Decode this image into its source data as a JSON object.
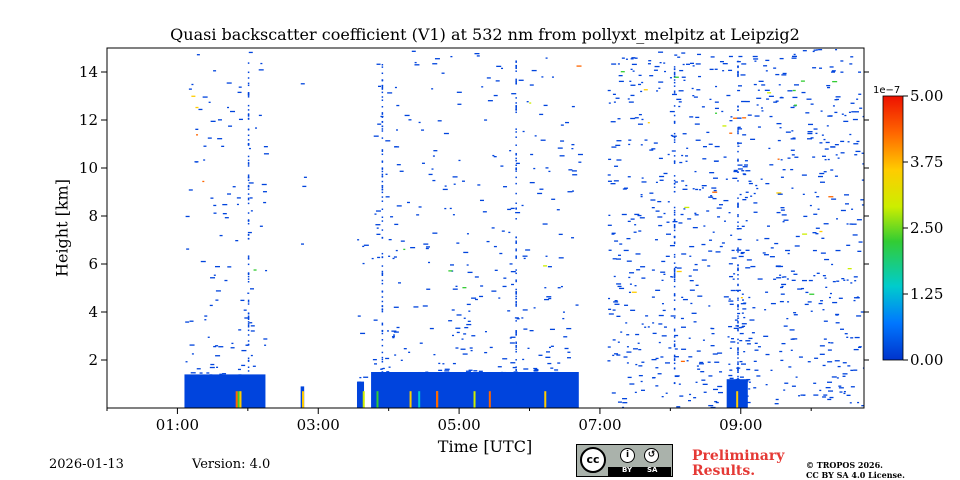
{
  "chart_data": {
    "type": "heatmap",
    "title": "Quasi backscatter coefficient (V1) at 532 nm from pollyxt_melpitz at Leipzig2",
    "xlabel": "Time [UTC]",
    "ylabel": "Height [km]",
    "xlim_hours": [
      0.0,
      10.75
    ],
    "ylim_km": [
      0.0,
      15.0
    ],
    "x_ticks": [
      {
        "hour": 1,
        "label": "01:00"
      },
      {
        "hour": 3,
        "label": "03:00"
      },
      {
        "hour": 5,
        "label": "05:00"
      },
      {
        "hour": 7,
        "label": "07:00"
      },
      {
        "hour": 9,
        "label": "09:00"
      }
    ],
    "x_minor_ticks_hours": [
      0,
      2,
      4,
      6,
      8,
      10
    ],
    "y_ticks": [
      {
        "km": 2,
        "label": "2"
      },
      {
        "km": 4,
        "label": "4"
      },
      {
        "km": 6,
        "label": "6"
      },
      {
        "km": 8,
        "label": "8"
      },
      {
        "km": 10,
        "label": "10"
      },
      {
        "km": 12,
        "label": "12"
      },
      {
        "km": 14,
        "label": "14"
      }
    ],
    "colorbar": {
      "exponent_label": "1e−7",
      "range": [
        0.0,
        5.0
      ],
      "ticks": [
        "0.00",
        "1.25",
        "2.50",
        "3.75",
        "5.00"
      ],
      "colormap": [
        "#0033cc",
        "#0077ff",
        "#00cccc",
        "#33cc33",
        "#ccee00",
        "#ffcc00",
        "#ff6600",
        "#ee1100"
      ]
    },
    "data_segments_hours": [
      {
        "start": 1.1,
        "end": 2.25,
        "dense_top_km": 1.4
      },
      {
        "start": 2.75,
        "end": 2.8,
        "dense_top_km": 0.9
      },
      {
        "start": 3.55,
        "end": 3.65,
        "dense_top_km": 1.1
      },
      {
        "start": 3.75,
        "end": 6.7,
        "dense_top_km": 1.5
      },
      {
        "start": 7.1,
        "end": 10.75,
        "dense_top_km": 0.0
      },
      {
        "start": 8.8,
        "end": 9.1,
        "dense_top_km": 1.2
      }
    ]
  },
  "footer": {
    "date": "2026-01-13",
    "version": "Version: 4.0",
    "preliminary_line1": "Preliminary",
    "preliminary_line2": "Results.",
    "copyright_line1": "© TROPOS 2026.",
    "copyright_line2": "CC BY SA 4.0 License.",
    "license_badge": {
      "cc": "cc",
      "by": "BY",
      "sa": "SA"
    }
  },
  "colors": {
    "accent_red": "#e53935",
    "profile_blue": "#0044dd"
  }
}
